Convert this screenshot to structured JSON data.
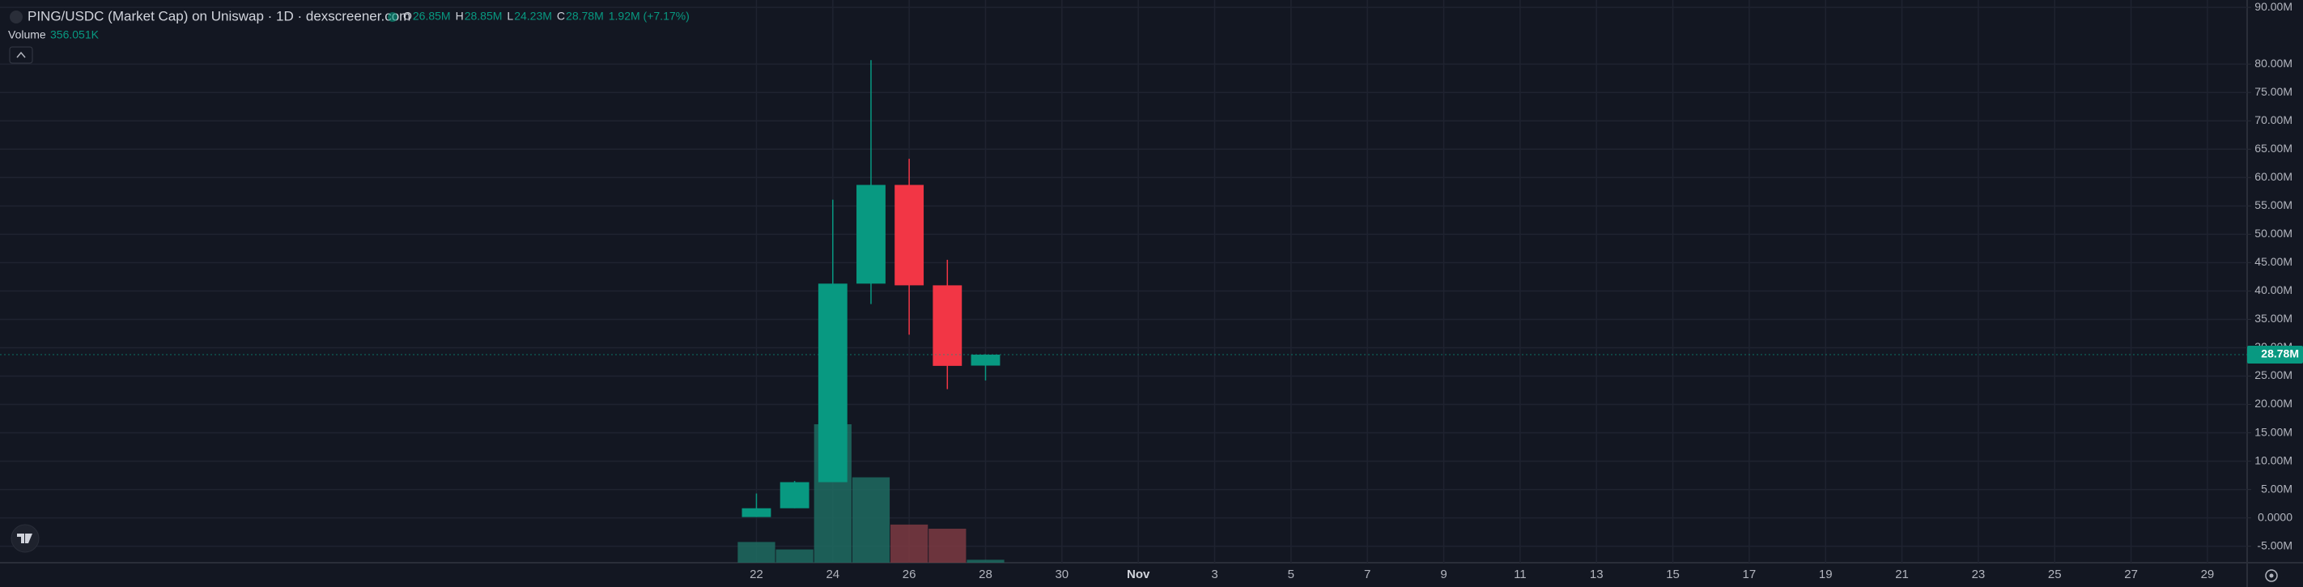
{
  "chart_data": {
    "type": "candlestick",
    "title": "PING/USDC (Market Cap) on Uniswap · 1D · dexscreener.com",
    "ohlc_legend": [
      {
        "key": "O",
        "label": "26.85M"
      },
      {
        "key": "H",
        "label": "28.85M"
      },
      {
        "key": "L",
        "label": "24.23M"
      },
      {
        "key": "C",
        "label": "28.78M"
      }
    ],
    "change_label": "1.92M (+7.17%)",
    "volume_title": "Volume",
    "volume_label": "356.051K",
    "last_price_label": "28.78M",
    "x": [
      22,
      23,
      24,
      25,
      26,
      27,
      28
    ],
    "open": [
      0.15,
      1.7,
      6.3,
      41.3,
      58.7,
      41.0,
      26.85
    ],
    "high": [
      4.3,
      6.5,
      56.1,
      80.7,
      63.3,
      45.5,
      28.85
    ],
    "low": [
      0.15,
      1.7,
      6.3,
      37.7,
      32.3,
      22.7,
      24.23
    ],
    "close": [
      1.7,
      6.3,
      41.3,
      58.7,
      41.0,
      26.8,
      28.78
    ],
    "volume": [
      2.5,
      1.6,
      16.7,
      10.3,
      4.6,
      4.1,
      0.356051
    ],
    "up_color": "#089981",
    "down_color": "#f23645",
    "volume_up_color": "#1e6b60",
    "volume_down_color": "#7d3942",
    "xlim": [
      2.19,
      61.04
    ],
    "xticks": [
      22,
      24,
      26,
      28,
      30,
      {
        "value": 32,
        "label": "Nov"
      },
      {
        "value": 34,
        "label": "3"
      },
      {
        "value": 36,
        "label": "5"
      },
      {
        "value": 38,
        "label": "7"
      },
      {
        "value": 40,
        "label": "9"
      },
      {
        "value": 42,
        "label": "11"
      },
      {
        "value": 44,
        "label": "13"
      },
      {
        "value": 46,
        "label": "15"
      },
      {
        "value": 48,
        "label": "17"
      },
      {
        "value": 50,
        "label": "19"
      },
      {
        "value": 52,
        "label": "21"
      },
      {
        "value": 54,
        "label": "23"
      },
      {
        "value": 56,
        "label": "25"
      },
      {
        "value": 58,
        "label": "27"
      },
      {
        "value": 60,
        "label": "29"
      }
    ],
    "ylim": [
      -7.9,
      91.3
    ],
    "yticks": [
      {
        "value": 90,
        "label": "90.00M"
      },
      {
        "value": 80,
        "label": "80.00M"
      },
      {
        "value": 75,
        "label": "75.00M"
      },
      {
        "value": 70,
        "label": "70.00M"
      },
      {
        "value": 65,
        "label": "65.00M"
      },
      {
        "value": 60,
        "label": "60.00M"
      },
      {
        "value": 55,
        "label": "55.00M"
      },
      {
        "value": 50,
        "label": "50.00M"
      },
      {
        "value": 45,
        "label": "45.00M"
      },
      {
        "value": 40,
        "label": "40.00M"
      },
      {
        "value": 35,
        "label": "35.00M"
      },
      {
        "value": 30,
        "label": "30.00M"
      },
      {
        "value": 25,
        "label": "25.00M"
      },
      {
        "value": 20,
        "label": "20.00M"
      },
      {
        "value": 15,
        "label": "15.00M"
      },
      {
        "value": 10,
        "label": "10.00M"
      },
      {
        "value": 5,
        "label": "5.00M"
      },
      {
        "value": 0,
        "label": "0.0000"
      },
      {
        "value": -5,
        "label": "-5.00M"
      }
    ],
    "grid": true
  }
}
